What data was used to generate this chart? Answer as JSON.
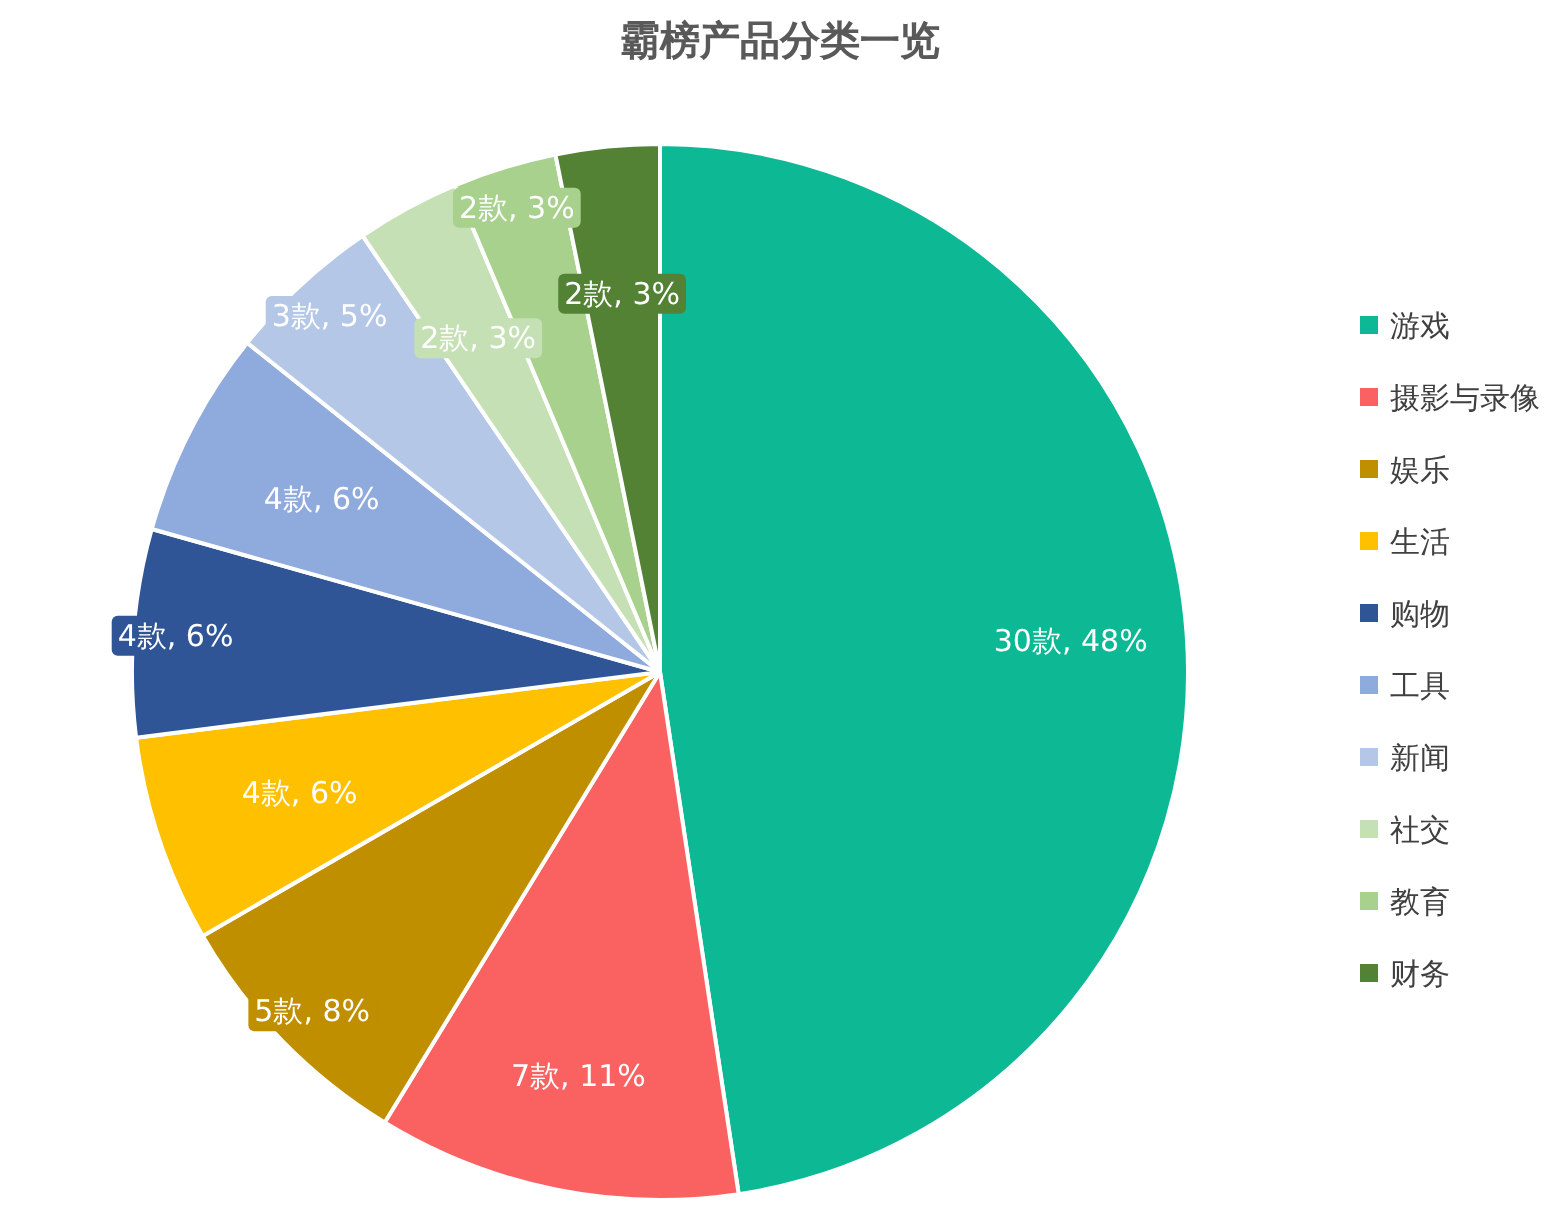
{
  "chart_data": {
    "type": "pie",
    "title": "霸榜产品分类一览",
    "categories": [
      "游戏",
      "摄影与录像",
      "娱乐",
      "生活",
      "购物",
      "工具",
      "新闻",
      "社交",
      "教育",
      "财务"
    ],
    "values": [
      30,
      7,
      5,
      4,
      4,
      4,
      3,
      2,
      2,
      2
    ],
    "value_labels": [
      "30款, 48%",
      "7款, 11%",
      "5款, 8%",
      "4款, 6%",
      "4款, 6%",
      "4款, 6%",
      "3款, 5%",
      "2款, 3%",
      "2款, 3%",
      "2款, 3%"
    ],
    "colors": [
      "#0db894",
      "#fa6262",
      "#bf8f00",
      "#ffc000",
      "#2f5597",
      "#8faadc",
      "#b4c7e7",
      "#c5e0b4",
      "#a9d18e",
      "#548235"
    ],
    "legend": "right"
  }
}
